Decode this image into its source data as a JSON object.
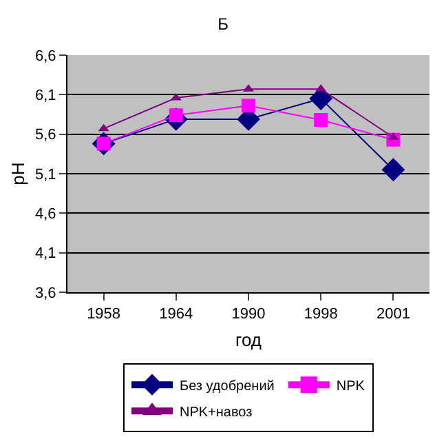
{
  "chart_data": {
    "type": "line",
    "title": "Б",
    "xlabel": "год",
    "ylabel": "pH",
    "categories": [
      "1958",
      "1964",
      "1990",
      "1998",
      "2001"
    ],
    "series": [
      {
        "name": "Без удобрений",
        "color": "#000080",
        "marker": "diamond",
        "values": [
          5.48,
          5.79,
          5.79,
          6.05,
          5.15
        ]
      },
      {
        "name": "NPK",
        "color": "#ff00ff",
        "marker": "square",
        "values": [
          5.48,
          5.84,
          5.96,
          5.78,
          5.53
        ]
      },
      {
        "name": "NPK+навоз",
        "color": "#800080",
        "marker": "triangle",
        "values": [
          5.67,
          6.06,
          6.17,
          6.17,
          5.56
        ]
      }
    ],
    "ylim": [
      3.6,
      6.6
    ],
    "yticks": [
      {
        "value": 3.6,
        "label": "3,6"
      },
      {
        "value": 4.1,
        "label": "4,1"
      },
      {
        "value": 4.6,
        "label": "4,6"
      },
      {
        "value": 5.1,
        "label": "5,1"
      },
      {
        "value": 5.6,
        "label": "5,6"
      },
      {
        "value": 6.1,
        "label": "6,1"
      },
      {
        "value": 6.6,
        "label": "6,6"
      }
    ],
    "grid": "y",
    "legend": "bottom"
  }
}
